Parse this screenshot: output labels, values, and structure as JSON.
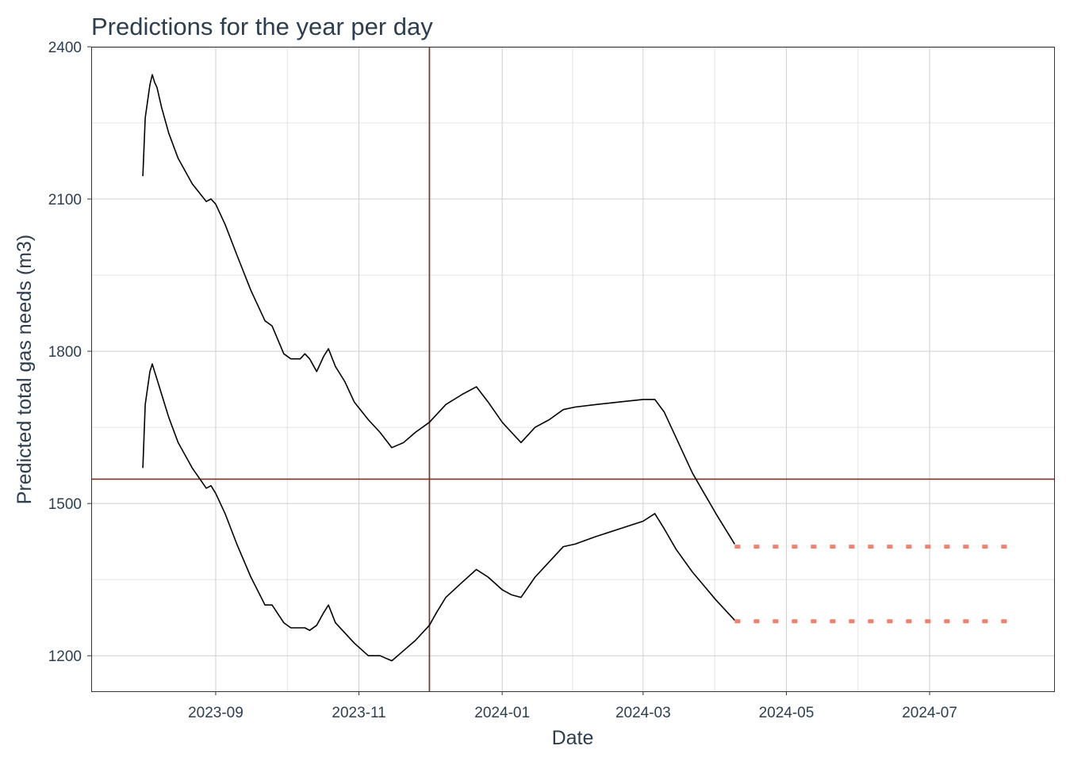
{
  "chart_data": {
    "type": "line",
    "title": "Predictions for the year per day",
    "xlabel": "Date",
    "ylabel": "Predicted total gas needs (m3)",
    "x_range": [
      "2023-07-10",
      "2024-08-23"
    ],
    "ylim": [
      1130,
      2400
    ],
    "y_ticks": [
      1200,
      1500,
      1800,
      2100,
      2400
    ],
    "x_ticks": [
      {
        "date": "2023-09-01",
        "label": "2023-09"
      },
      {
        "date": "2023-11-01",
        "label": "2023-11"
      },
      {
        "date": "2024-01-01",
        "label": "2024-01"
      },
      {
        "date": "2024-03-01",
        "label": "2024-03"
      },
      {
        "date": "2024-05-01",
        "label": "2024-05"
      },
      {
        "date": "2024-07-01",
        "label": "2024-07"
      }
    ],
    "grid": true,
    "legend": "none",
    "colors": {
      "series": "#000000",
      "forecast": "#f08070",
      "reference": "#7a3324",
      "text": "#2c3e50"
    },
    "reference_lines": {
      "vertical_date": "2023-12-01",
      "horizontal_value": 1548
    },
    "series": [
      {
        "x": [
          "2023-08-01",
          "2023-08-02",
          "2023-08-04",
          "2023-08-05",
          "2023-08-06",
          "2023-08-07",
          "2023-08-09",
          "2023-08-12",
          "2023-08-16",
          "2023-08-22",
          "2023-08-28",
          "2023-08-30",
          "2023-09-01",
          "2023-09-05",
          "2023-09-10",
          "2023-09-16",
          "2023-09-22",
          "2023-09-25",
          "2023-09-30",
          "2023-10-03",
          "2023-10-07",
          "2023-10-09",
          "2023-10-11",
          "2023-10-14",
          "2023-10-17",
          "2023-10-19",
          "2023-10-22",
          "2023-10-26",
          "2023-10-30",
          "2023-11-05",
          "2023-11-10",
          "2023-11-15",
          "2023-11-20",
          "2023-11-25",
          "2023-12-01",
          "2023-12-04",
          "2023-12-08",
          "2023-12-15",
          "2023-12-21",
          "2023-12-26",
          "2024-01-01",
          "2024-01-05",
          "2024-01-09",
          "2024-01-15",
          "2024-01-21",
          "2024-01-27",
          "2024-02-01",
          "2024-02-10",
          "2024-02-20",
          "2024-03-01",
          "2024-03-06",
          "2024-03-10",
          "2024-03-15",
          "2024-03-22",
          "2024-04-01",
          "2024-04-09"
        ],
        "y": [
          2145,
          2260,
          2325,
          2345,
          2330,
          2320,
          2280,
          2230,
          2180,
          2130,
          2095,
          2100,
          2090,
          2050,
          1990,
          1920,
          1860,
          1850,
          1795,
          1785,
          1785,
          1795,
          1785,
          1760,
          1790,
          1805,
          1770,
          1740,
          1700,
          1665,
          1640,
          1610,
          1620,
          1640,
          1660,
          1675,
          1695,
          1715,
          1730,
          1700,
          1660,
          1640,
          1620,
          1650,
          1665,
          1685,
          1690,
          1695,
          1700,
          1705,
          1705,
          1680,
          1630,
          1560,
          1480,
          1420
        ]
      },
      {
        "x": [
          "2023-08-01",
          "2023-08-02",
          "2023-08-04",
          "2023-08-05",
          "2023-08-06",
          "2023-08-07",
          "2023-08-09",
          "2023-08-12",
          "2023-08-16",
          "2023-08-22",
          "2023-08-28",
          "2023-08-30",
          "2023-09-01",
          "2023-09-05",
          "2023-09-10",
          "2023-09-16",
          "2023-09-22",
          "2023-09-25",
          "2023-09-30",
          "2023-10-03",
          "2023-10-07",
          "2023-10-09",
          "2023-10-11",
          "2023-10-14",
          "2023-10-17",
          "2023-10-19",
          "2023-10-22",
          "2023-10-26",
          "2023-10-30",
          "2023-11-05",
          "2023-11-10",
          "2023-11-15",
          "2023-11-20",
          "2023-11-25",
          "2023-12-01",
          "2023-12-04",
          "2023-12-08",
          "2023-12-15",
          "2023-12-21",
          "2023-12-26",
          "2024-01-01",
          "2024-01-05",
          "2024-01-09",
          "2024-01-15",
          "2024-01-21",
          "2024-01-27",
          "2024-02-01",
          "2024-02-10",
          "2024-02-20",
          "2024-03-01",
          "2024-03-06",
          "2024-03-10",
          "2024-03-15",
          "2024-03-22",
          "2024-04-01",
          "2024-04-09"
        ],
        "y": [
          1570,
          1695,
          1760,
          1775,
          1760,
          1745,
          1715,
          1670,
          1620,
          1570,
          1530,
          1535,
          1520,
          1480,
          1420,
          1355,
          1300,
          1300,
          1265,
          1255,
          1255,
          1255,
          1250,
          1260,
          1285,
          1300,
          1265,
          1245,
          1225,
          1200,
          1200,
          1190,
          1210,
          1230,
          1260,
          1285,
          1315,
          1345,
          1370,
          1355,
          1330,
          1320,
          1315,
          1355,
          1385,
          1415,
          1420,
          1435,
          1450,
          1465,
          1480,
          1450,
          1410,
          1365,
          1310,
          1270
        ]
      }
    ],
    "forecast_series": [
      {
        "x": [
          "2024-04-09",
          "2024-08-07"
        ],
        "y": [
          1415,
          1415
        ]
      },
      {
        "x": [
          "2024-04-09",
          "2024-08-07"
        ],
        "y": [
          1268,
          1268
        ]
      }
    ]
  }
}
